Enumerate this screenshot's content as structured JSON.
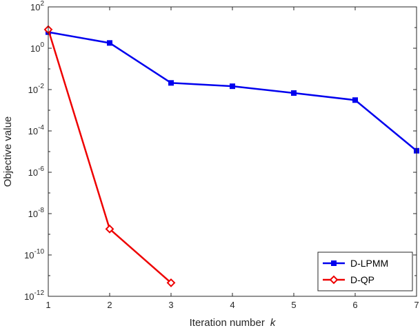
{
  "chart_data": {
    "type": "line",
    "xlabel": "Iteration number",
    "xlabel_var": "k",
    "ylabel": "Objective value",
    "xlim": [
      1,
      7
    ],
    "ylim": [
      1e-12,
      100
    ],
    "yscale": "log",
    "grid": false,
    "legend_position": "bottom-right",
    "x_ticks": [
      1,
      2,
      3,
      4,
      5,
      6,
      7
    ],
    "y_ticks": [
      {
        "value": 100.0,
        "base": "10",
        "exp": "2"
      },
      {
        "value": 1.0,
        "base": "10",
        "exp": "0"
      },
      {
        "value": 0.01,
        "base": "10",
        "exp": "-2"
      },
      {
        "value": 0.0001,
        "base": "10",
        "exp": "-4"
      },
      {
        "value": 1e-06,
        "base": "10",
        "exp": "-6"
      },
      {
        "value": 1e-08,
        "base": "10",
        "exp": "-8"
      },
      {
        "value": 1e-10,
        "base": "10",
        "exp": "-10"
      },
      {
        "value": 1e-12,
        "base": "10",
        "exp": "-12"
      }
    ],
    "series": [
      {
        "name": "D-LPMM",
        "color": "#0000ee",
        "marker": "square",
        "x": [
          1,
          2,
          3,
          4,
          5,
          6,
          7
        ],
        "y": [
          6.0,
          1.8,
          0.021,
          0.0145,
          0.0068,
          0.0031,
          1.1e-05
        ]
      },
      {
        "name": "D-QP",
        "color": "#ee0000",
        "marker": "diamond",
        "x": [
          1,
          2,
          3
        ],
        "y": [
          8.0,
          1.8e-09,
          4.5e-12
        ]
      }
    ]
  }
}
